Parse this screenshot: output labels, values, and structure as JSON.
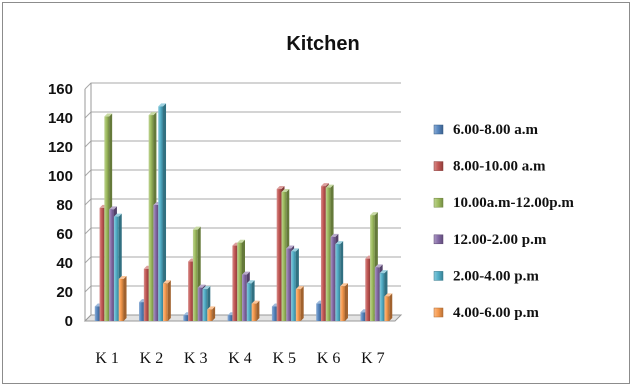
{
  "chart_data": {
    "type": "bar",
    "title": "Kitchen",
    "categories": [
      "K 1",
      "K 2",
      "K 3",
      "K 4",
      "K 5",
      "K 6",
      "K 7"
    ],
    "ylim": [
      0,
      160
    ],
    "yticks": [
      0,
      20,
      40,
      60,
      80,
      100,
      120,
      140,
      160
    ],
    "grid": true,
    "legend_position": "right",
    "series": [
      {
        "name": "6.00-8.00 a.m",
        "color": "#4f81bd",
        "values": [
          10,
          13,
          4,
          4,
          10,
          12,
          6
        ]
      },
      {
        "name": "8.00-10.00 a.m",
        "color": "#c0504d",
        "values": [
          78,
          36,
          41,
          52,
          91,
          93,
          43
        ]
      },
      {
        "name": "10.00a.m-12.00p.m",
        "color": "#9bbb59",
        "values": [
          141,
          142,
          63,
          54,
          89,
          92,
          73
        ]
      },
      {
        "name": "12.00-2.00 p.m",
        "color": "#8064a2",
        "values": [
          77,
          80,
          23,
          32,
          50,
          58,
          37
        ]
      },
      {
        "name": "2.00-4.00 p.m",
        "color": "#4bacc6",
        "values": [
          72,
          148,
          22,
          26,
          48,
          53,
          33
        ]
      },
      {
        "name": "4.00-6.00 p.m",
        "color": "#f79646",
        "values": [
          29,
          26,
          8,
          12,
          22,
          24,
          17
        ]
      }
    ]
  }
}
